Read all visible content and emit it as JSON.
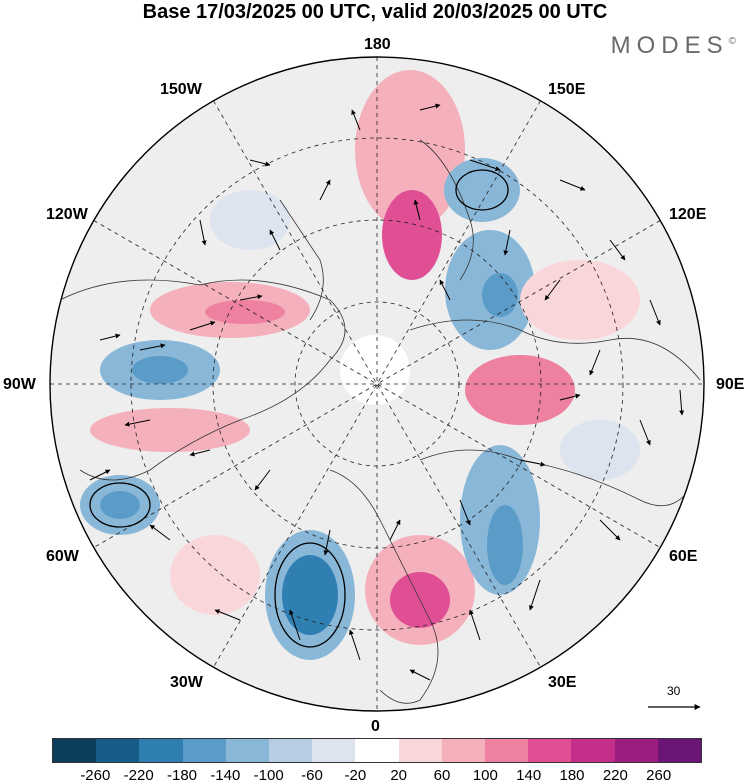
{
  "title": "Base 17/03/2025 00 UTC, valid 20/03/2025 00 UTC",
  "brand": "MODES",
  "brand_mark": "©",
  "longitude_labels": {
    "top": "180",
    "bottom": "0",
    "left": "90W",
    "right": "90E",
    "upper_left": "150W",
    "upper_left2": "120W",
    "upper_right": "150E",
    "upper_right2": "120E",
    "lower_left": "60W",
    "lower_left2": "30W",
    "lower_right": "60E",
    "lower_right2": "30E"
  },
  "wind_scale": {
    "value": "30",
    "unit_arrow": "reference-vector"
  },
  "colorbar": {
    "colors": [
      "#0d3d5c",
      "#175d8a",
      "#2f7fb3",
      "#5a9cc7",
      "#89b7d8",
      "#b6cde4",
      "#dde4ef",
      "#ffffff",
      "#f9d6d9",
      "#f4b0bb",
      "#ee80a0",
      "#e04e94",
      "#c32f8a",
      "#9c1c80",
      "#6b1576"
    ],
    "ticks": [
      "-260",
      "-220",
      "-180",
      "-140",
      "-100",
      "-60",
      "-20",
      "20",
      "60",
      "100",
      "140",
      "180",
      "220",
      "260"
    ]
  },
  "anomaly_blobs": [
    {
      "name": "blue-anomaly-atlantic",
      "level": -220,
      "color": "#2f7fb3"
    },
    {
      "name": "pink-anomaly-europe",
      "level": 180,
      "color": "#e04e94"
    },
    {
      "name": "blue-anomaly-russia",
      "level": -140,
      "color": "#5a9cc7"
    },
    {
      "name": "pink-anomaly-siberia",
      "level": 140,
      "color": "#ee80a0"
    },
    {
      "name": "pink-anomaly-pacific",
      "level": 140,
      "color": "#ee80a0"
    },
    {
      "name": "blue-anomaly-canada",
      "level": -140,
      "color": "#5a9cc7"
    },
    {
      "name": "pink-anomaly-canada",
      "level": 140,
      "color": "#ee80a0"
    },
    {
      "name": "blue-anomaly-west-atlantic",
      "level": -100,
      "color": "#89b7d8"
    }
  ]
}
